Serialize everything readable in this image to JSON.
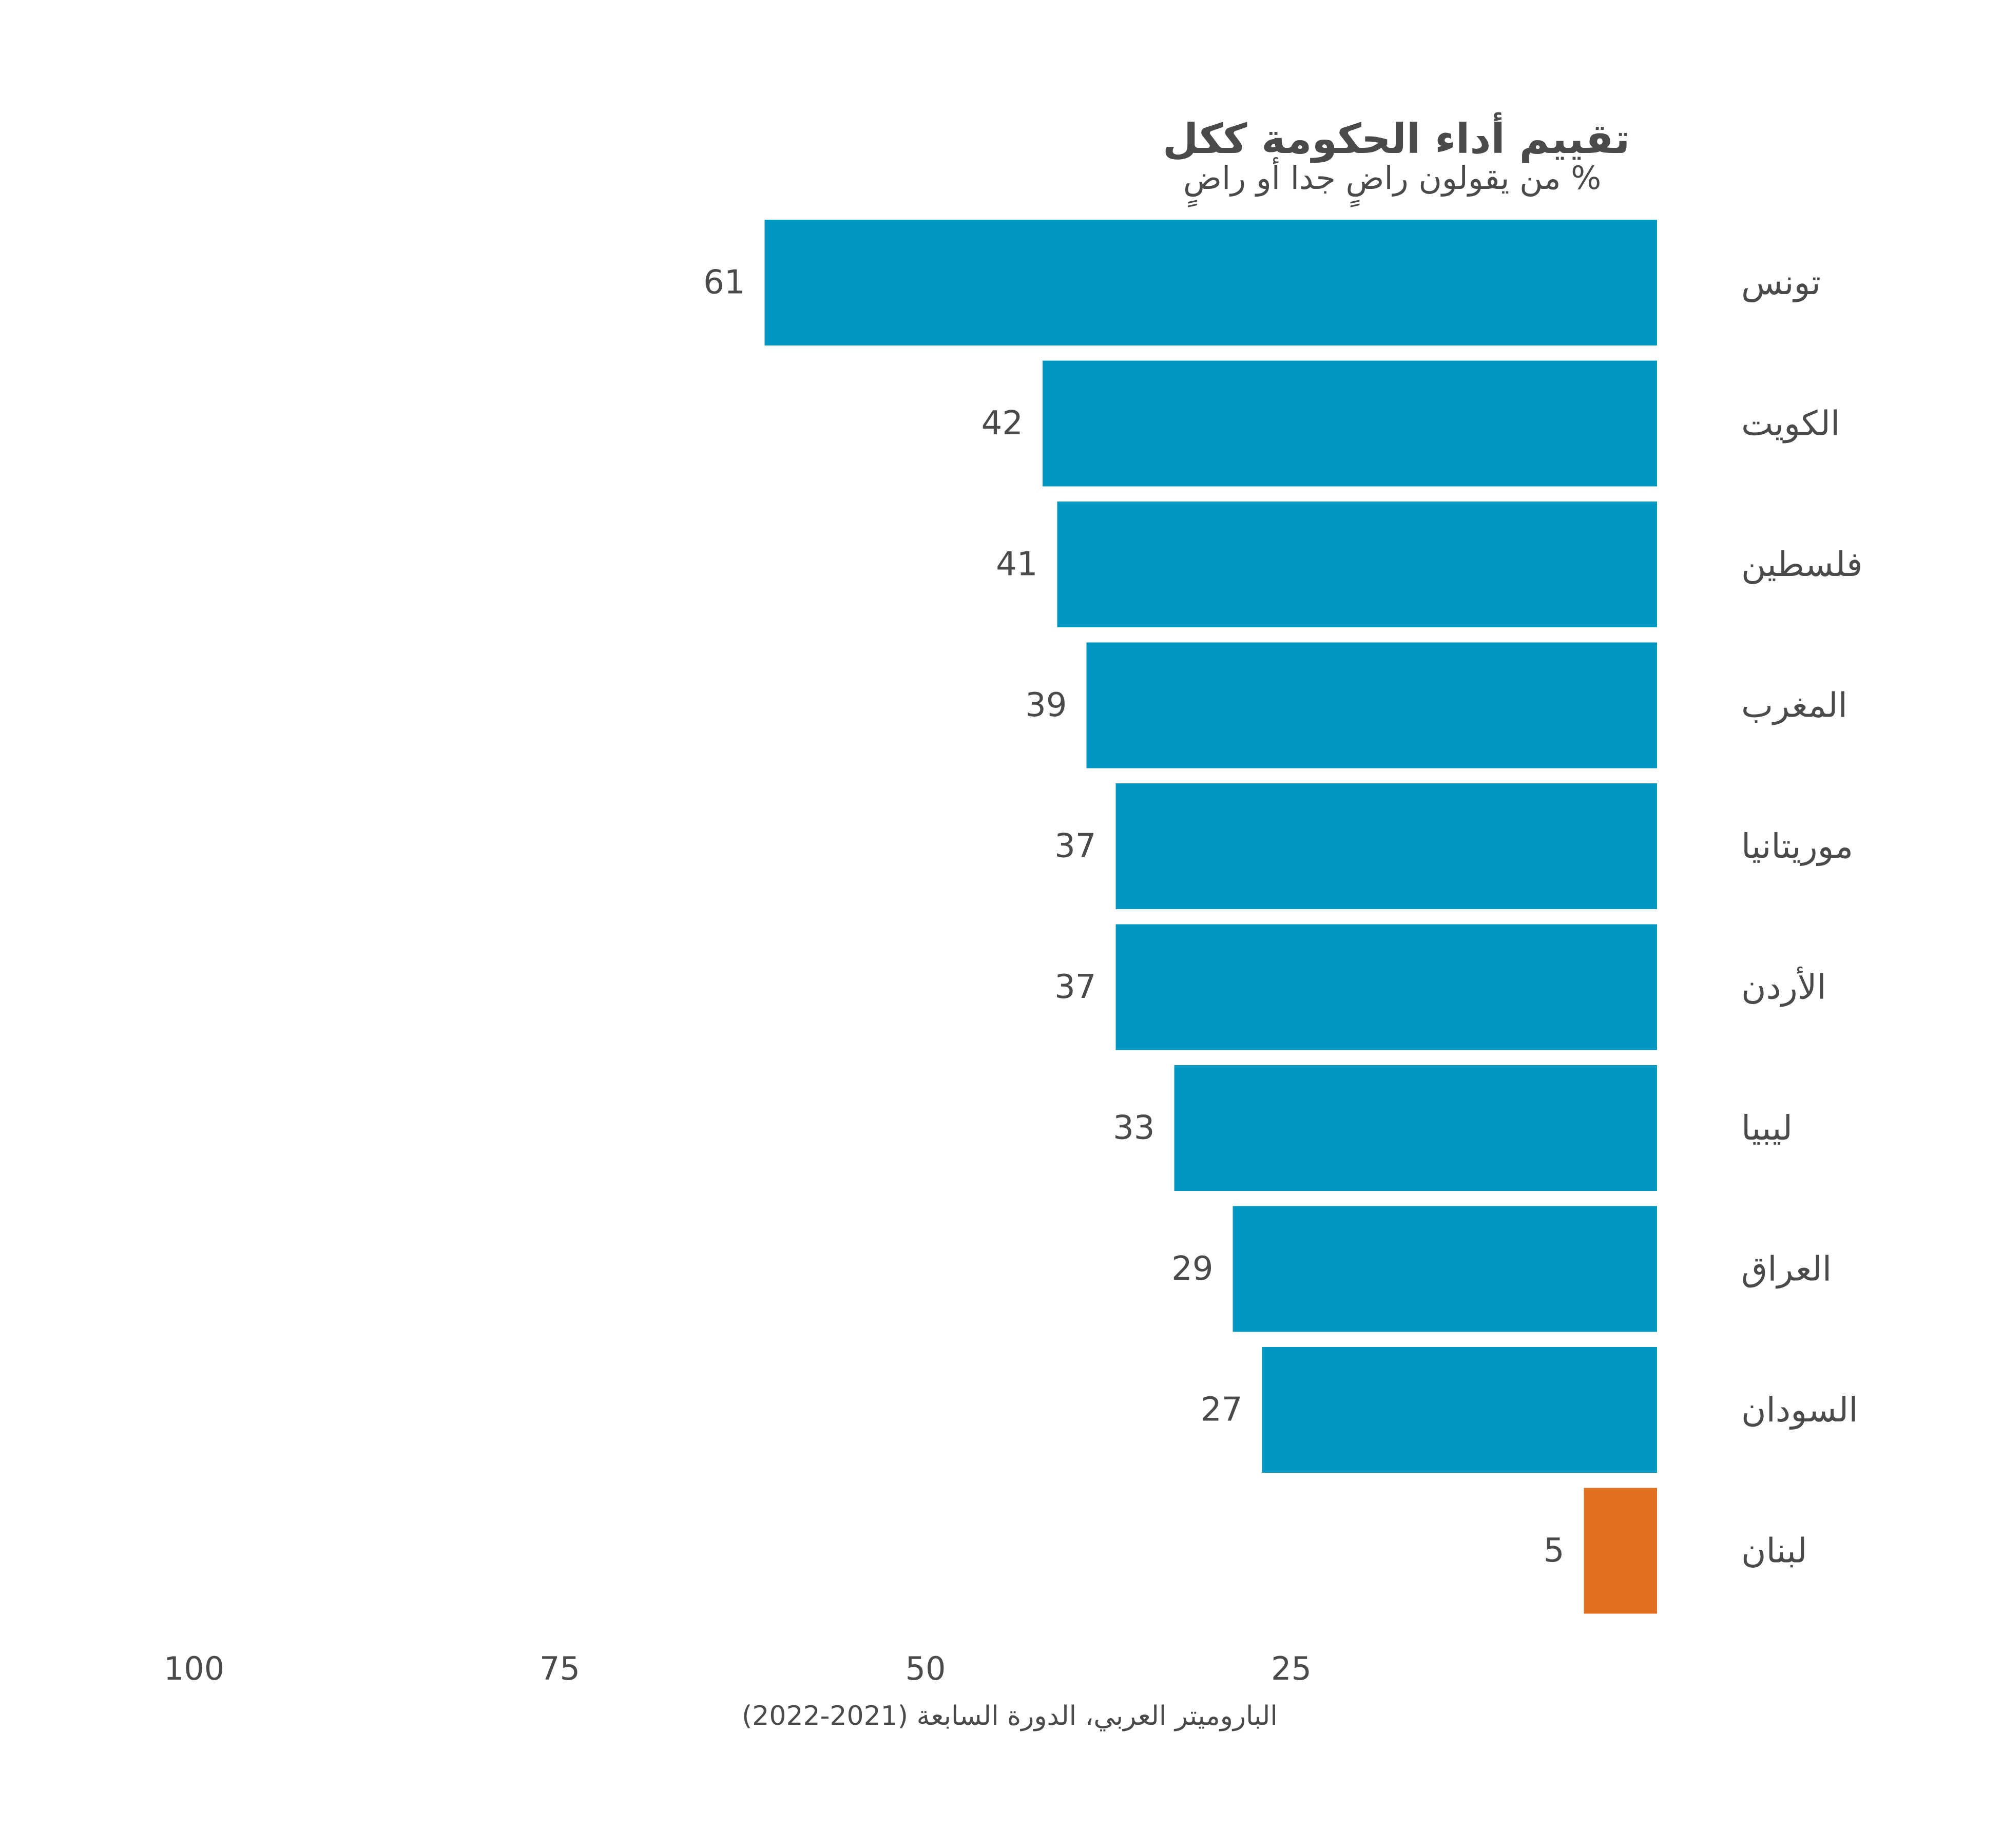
{
  "chart_data": {
    "type": "bar",
    "orientation": "horizontal",
    "x_direction": "reversed",
    "title": "تقييم أداء الحكومة ككل",
    "subtitle": "% من يقولون راضٍ جدا أو راضٍ",
    "categories": [
      "تونس",
      "الكويت",
      "فلسطين",
      "المغرب",
      "موريتانيا",
      "الأردن",
      "ليبيا",
      "العراق",
      "السودان",
      "لبنان"
    ],
    "values": [
      61,
      42,
      41,
      39,
      37,
      37,
      33,
      29,
      27,
      5
    ],
    "value_labels": [
      "61",
      "42",
      "41",
      "39",
      "37",
      "37",
      "33",
      "29",
      "27",
      "5"
    ],
    "xlim": [
      0,
      100
    ],
    "x_ticks": [
      100,
      75,
      50,
      25
    ],
    "x_tick_labels": [
      "100",
      "75",
      "50",
      "25"
    ],
    "grid": false,
    "legend": "none",
    "source": "الباروميتر العربي، الدورة السابعة (2021-2022)",
    "colors": {
      "default": "#0098c0",
      "highlight": "#e07020",
      "highlight_category": "لبنان",
      "text": "#4a4a4a"
    }
  }
}
